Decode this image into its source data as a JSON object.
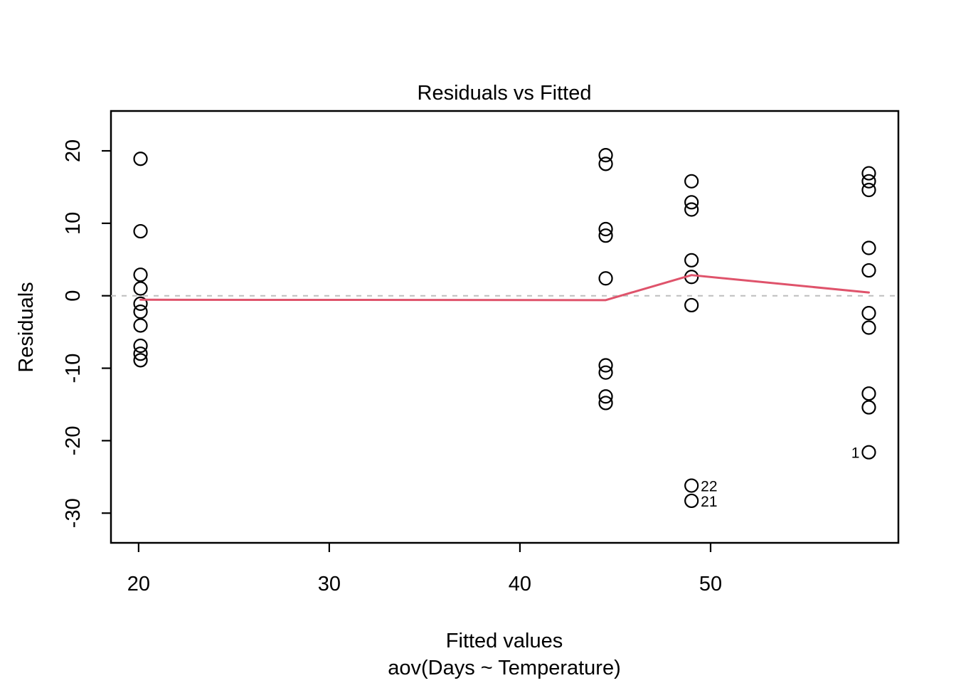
{
  "title": "Residuals vs Fitted",
  "axes": {
    "x_label": "Fitted values",
    "x_sub_label": "aov(Days ~ Temperature)",
    "y_label": "Residuals"
  },
  "colors": {
    "smooth_line": "#DF536B",
    "zero_line": "#BEBEBE",
    "point_stroke": "#000000",
    "axis": "#000000",
    "background": "#FFFFFF"
  },
  "chart_data": {
    "type": "scatter",
    "title": "Residuals vs Fitted",
    "xlabel": "Fitted values",
    "ylabel": "Residuals",
    "subtitle": "aov(Days ~ Temperature)",
    "xlim": [
      18.55,
      59.85
    ],
    "ylim": [
      -34.1,
      25.5
    ],
    "x_ticks": [
      20,
      30,
      40,
      50
    ],
    "y_ticks": [
      -30,
      -20,
      -10,
      0,
      10,
      20
    ],
    "grid": false,
    "legend": null,
    "zero_line_y": 0,
    "groups": [
      {
        "fitted": 20.1,
        "residuals": [
          18.9,
          8.9,
          2.9,
          1.0,
          -1.1,
          -2.2,
          -4.1,
          -6.9,
          -8.0,
          -8.9
        ]
      },
      {
        "fitted": 44.5,
        "residuals": [
          19.4,
          18.2,
          9.2,
          8.3,
          2.4,
          -9.6,
          -10.6,
          -13.9,
          -14.8
        ]
      },
      {
        "fitted": 49.0,
        "residuals": [
          15.8,
          12.9,
          11.9,
          4.9,
          2.6,
          -1.3,
          -26.2,
          -28.3
        ]
      },
      {
        "fitted": 58.3,
        "residuals": [
          16.9,
          15.8,
          14.6,
          6.6,
          3.5,
          -2.4,
          -4.4,
          -13.5,
          -15.4,
          -21.6
        ]
      }
    ],
    "labeled_points": [
      {
        "label": "22",
        "fitted": 49.0,
        "residual": -26.2,
        "side": "right"
      },
      {
        "label": "21",
        "fitted": 49.0,
        "residual": -28.3,
        "side": "right"
      },
      {
        "label": "1",
        "fitted": 58.3,
        "residual": -21.6,
        "side": "left"
      }
    ],
    "smooth_line": [
      [
        20.1,
        -0.55
      ],
      [
        44.5,
        -0.6
      ],
      [
        49.0,
        2.85
      ],
      [
        58.3,
        0.45
      ]
    ]
  }
}
